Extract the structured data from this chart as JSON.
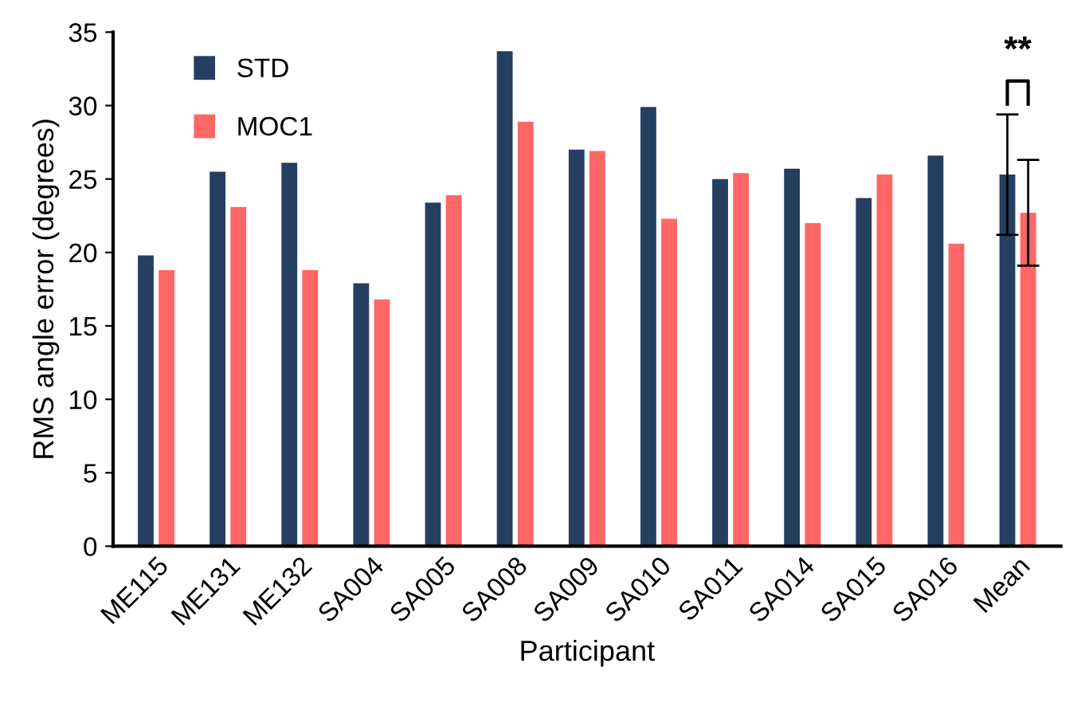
{
  "chart_data": {
    "type": "bar",
    "xlabel": "Participant",
    "ylabel": "RMS angle error (degrees)",
    "categories": [
      "ME115",
      "ME131",
      "ME132",
      "SA004",
      "SA005",
      "SA008",
      "SA009",
      "SA010",
      "SA011",
      "SA014",
      "SA015",
      "SA016",
      "Mean"
    ],
    "series": [
      {
        "name": "STD",
        "color": "#243f60",
        "values": [
          19.8,
          25.5,
          26.1,
          17.9,
          23.4,
          33.7,
          27.0,
          29.9,
          25.0,
          25.7,
          23.7,
          26.6,
          25.3
        ],
        "errors": [
          null,
          null,
          null,
          null,
          null,
          null,
          null,
          null,
          null,
          null,
          null,
          null,
          4.1
        ]
      },
      {
        "name": "MOC1",
        "color": "#ff6666",
        "values": [
          18.8,
          23.1,
          18.8,
          16.8,
          23.9,
          28.9,
          26.9,
          22.3,
          25.4,
          22.0,
          25.3,
          20.6,
          22.7
        ],
        "errors": [
          null,
          null,
          null,
          null,
          null,
          null,
          null,
          null,
          null,
          null,
          null,
          null,
          3.6
        ]
      }
    ],
    "ylim": [
      0,
      35
    ],
    "yticks": [
      0,
      5,
      10,
      15,
      20,
      25,
      30,
      35
    ],
    "grid": false,
    "legend": "top left",
    "annotations": [
      "**"
    ]
  }
}
